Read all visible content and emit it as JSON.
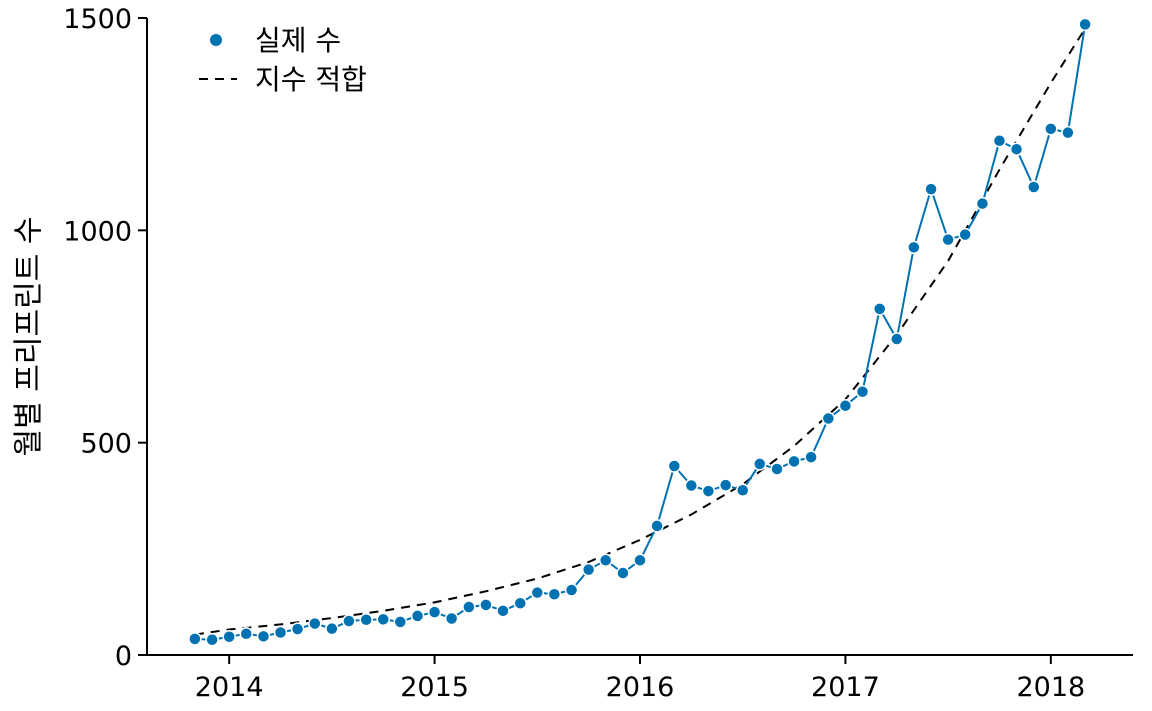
{
  "chart_data": {
    "type": "line",
    "title": "",
    "xlabel": "",
    "ylabel": "월별 프리프린트 수",
    "xlim": [
      2013.6,
      2018.4
    ],
    "ylim": [
      0,
      1500
    ],
    "x_ticks": [
      2014,
      2015,
      2016,
      2017,
      2018
    ],
    "y_ticks": [
      0,
      500,
      1000,
      1500
    ],
    "grid": false,
    "legend": {
      "placement": "top-left",
      "entries": [
        "실제 수",
        "지수 적합"
      ]
    },
    "series": [
      {
        "name": "실제 수",
        "style": "line-with-markers",
        "color": "#0072B2",
        "x": [
          2013.833,
          2013.917,
          2014.0,
          2014.083,
          2014.167,
          2014.25,
          2014.333,
          2014.417,
          2014.5,
          2014.583,
          2014.667,
          2014.75,
          2014.833,
          2014.917,
          2015.0,
          2015.083,
          2015.167,
          2015.25,
          2015.333,
          2015.417,
          2015.5,
          2015.583,
          2015.667,
          2015.75,
          2015.833,
          2015.917,
          2016.0,
          2016.083,
          2016.167,
          2016.25,
          2016.333,
          2016.417,
          2016.5,
          2016.583,
          2016.667,
          2016.75,
          2016.833,
          2016.917,
          2017.0,
          2017.083,
          2017.167,
          2017.25,
          2017.333,
          2017.417,
          2017.5,
          2017.583,
          2017.667,
          2017.75,
          2017.833,
          2017.917,
          2018.0,
          2018.083,
          2018.167
        ],
        "y": [
          38,
          36,
          43,
          50,
          44,
          53,
          61,
          74,
          62,
          80,
          83,
          84,
          78,
          92,
          101,
          86,
          113,
          118,
          104,
          122,
          147,
          143,
          153,
          201,
          223,
          193,
          223,
          304,
          445,
          399,
          386,
          400,
          388,
          450,
          438,
          456,
          466,
          557,
          587,
          620,
          815,
          744,
          960,
          1097,
          978,
          990,
          1063,
          1211,
          1191,
          1102,
          1239,
          1230,
          1485
        ]
      },
      {
        "name": "지수 적합",
        "style": "dashed",
        "color": "#000000",
        "x": [
          2013.833,
          2014.0,
          2014.25,
          2014.5,
          2014.75,
          2015.0,
          2015.25,
          2015.5,
          2015.75,
          2016.0,
          2016.25,
          2016.5,
          2016.75,
          2017.0,
          2017.25,
          2017.5,
          2017.75,
          2018.0,
          2018.167
        ],
        "y": [
          48,
          60,
          72,
          87,
          104,
          124,
          150,
          180,
          219,
          271,
          331,
          402,
          492,
          602,
          754,
          928,
          1143,
          1347,
          1475
        ]
      }
    ]
  }
}
